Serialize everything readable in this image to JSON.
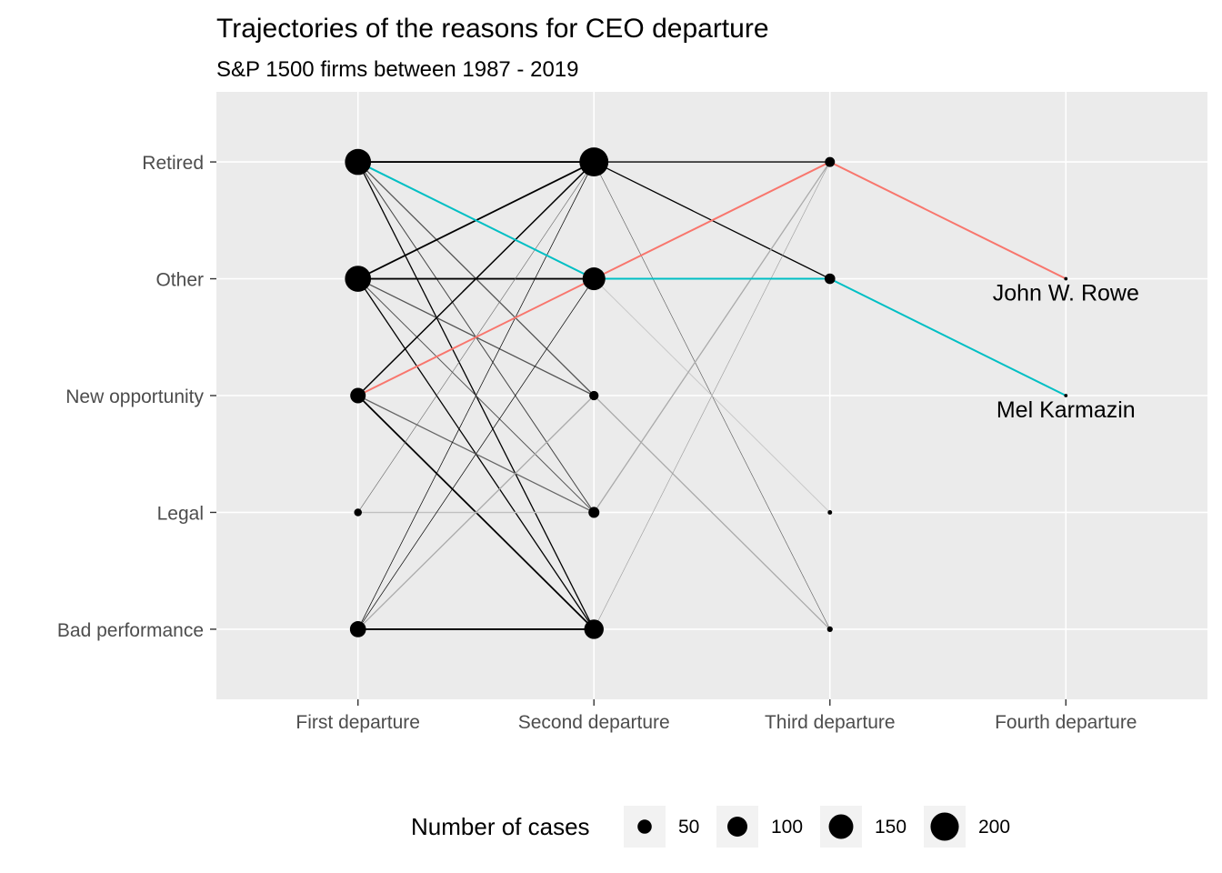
{
  "chart_data": {
    "type": "scatter",
    "title": "Trajectories of the reasons for CEO departure",
    "subtitle": "S&P 1500 firms between 1987 - 2019",
    "x_categories": [
      "First departure",
      "Second departure",
      "Third departure",
      "Fourth departure"
    ],
    "y_categories": [
      "Bad performance",
      "Legal",
      "New opportunity",
      "Other",
      "Retired"
    ],
    "grid": true,
    "legend": {
      "title": "Number of cases",
      "position": "bottom",
      "entries": [
        {
          "label": "50",
          "value": 50
        },
        {
          "label": "100",
          "value": 100
        },
        {
          "label": "150",
          "value": 150
        },
        {
          "label": "200",
          "value": 200
        }
      ]
    },
    "nodes": [
      {
        "x": "First departure",
        "y": "Retired",
        "n": 170
      },
      {
        "x": "First departure",
        "y": "Other",
        "n": 170
      },
      {
        "x": "First departure",
        "y": "New opportunity",
        "n": 60
      },
      {
        "x": "First departure",
        "y": "Legal",
        "n": 15
      },
      {
        "x": "First departure",
        "y": "Bad performance",
        "n": 65
      },
      {
        "x": "Second departure",
        "y": "Retired",
        "n": 210
      },
      {
        "x": "Second departure",
        "y": "Other",
        "n": 130
      },
      {
        "x": "Second departure",
        "y": "New opportunity",
        "n": 22
      },
      {
        "x": "Second departure",
        "y": "Legal",
        "n": 30
      },
      {
        "x": "Second departure",
        "y": "Bad performance",
        "n": 95
      },
      {
        "x": "Third departure",
        "y": "Retired",
        "n": 25
      },
      {
        "x": "Third departure",
        "y": "Other",
        "n": 28
      },
      {
        "x": "Third departure",
        "y": "Legal",
        "n": 5
      },
      {
        "x": "Third departure",
        "y": "Bad performance",
        "n": 8
      },
      {
        "x": "Fourth departure",
        "y": "Other",
        "n": 3
      },
      {
        "x": "Fourth departure",
        "y": "New opportunity",
        "n": 3
      }
    ],
    "links": [
      {
        "from": [
          "First departure",
          "Retired"
        ],
        "to": [
          "Second departure",
          "Retired"
        ],
        "tone": "#000000",
        "w": 1.8
      },
      {
        "from": [
          "First departure",
          "Retired"
        ],
        "to": [
          "Second departure",
          "New opportunity"
        ],
        "tone": "#555555",
        "w": 1.3
      },
      {
        "from": [
          "First departure",
          "Retired"
        ],
        "to": [
          "Second departure",
          "Legal"
        ],
        "tone": "#444444",
        "w": 1.0
      },
      {
        "from": [
          "First departure",
          "Retired"
        ],
        "to": [
          "Second departure",
          "Bad performance"
        ],
        "tone": "#000000",
        "w": 1.3
      },
      {
        "from": [
          "First departure",
          "Other"
        ],
        "to": [
          "Second departure",
          "Retired"
        ],
        "tone": "#000000",
        "w": 1.8
      },
      {
        "from": [
          "First departure",
          "Other"
        ],
        "to": [
          "Second departure",
          "Other"
        ],
        "tone": "#000000",
        "w": 1.8
      },
      {
        "from": [
          "First departure",
          "Other"
        ],
        "to": [
          "Second departure",
          "New opportunity"
        ],
        "tone": "#555555",
        "w": 1.3
      },
      {
        "from": [
          "First departure",
          "Other"
        ],
        "to": [
          "Second departure",
          "Legal"
        ],
        "tone": "#555555",
        "w": 1.0
      },
      {
        "from": [
          "First departure",
          "Other"
        ],
        "to": [
          "Second departure",
          "Bad performance"
        ],
        "tone": "#000000",
        "w": 1.3
      },
      {
        "from": [
          "First departure",
          "New opportunity"
        ],
        "to": [
          "Second departure",
          "Retired"
        ],
        "tone": "#000000",
        "w": 1.5
      },
      {
        "from": [
          "First departure",
          "New opportunity"
        ],
        "to": [
          "Second departure",
          "Legal"
        ],
        "tone": "#666666",
        "w": 1.3
      },
      {
        "from": [
          "First departure",
          "New opportunity"
        ],
        "to": [
          "Second departure",
          "Bad performance"
        ],
        "tone": "#000000",
        "w": 1.8
      },
      {
        "from": [
          "First departure",
          "Legal"
        ],
        "to": [
          "Second departure",
          "Retired"
        ],
        "tone": "#666666",
        "w": 0.6
      },
      {
        "from": [
          "First departure",
          "Legal"
        ],
        "to": [
          "Second departure",
          "Legal"
        ],
        "tone": "#c0c0c0",
        "w": 1.5
      },
      {
        "from": [
          "First departure",
          "Bad performance"
        ],
        "to": [
          "Second departure",
          "Retired"
        ],
        "tone": "#000000",
        "w": 0.7
      },
      {
        "from": [
          "First departure",
          "Bad performance"
        ],
        "to": [
          "Second departure",
          "Other"
        ],
        "tone": "#000000",
        "w": 0.7
      },
      {
        "from": [
          "First departure",
          "Bad performance"
        ],
        "to": [
          "Second departure",
          "New opportunity"
        ],
        "tone": "#aaaaaa",
        "w": 1.3
      },
      {
        "from": [
          "First departure",
          "Bad performance"
        ],
        "to": [
          "Second departure",
          "Bad performance"
        ],
        "tone": "#000000",
        "w": 1.8
      },
      {
        "from": [
          "Second departure",
          "Retired"
        ],
        "to": [
          "Third departure",
          "Retired"
        ],
        "tone": "#000000",
        "w": 1.3
      },
      {
        "from": [
          "Second departure",
          "Retired"
        ],
        "to": [
          "Third departure",
          "Other"
        ],
        "tone": "#000000",
        "w": 1.3
      },
      {
        "from": [
          "Second departure",
          "Retired"
        ],
        "to": [
          "Third departure",
          "Bad performance"
        ],
        "tone": "#555555",
        "w": 0.6
      },
      {
        "from": [
          "Second departure",
          "Other"
        ],
        "to": [
          "Third departure",
          "Legal"
        ],
        "tone": "#c8c8c8",
        "w": 1.0
      },
      {
        "from": [
          "Second departure",
          "New opportunity"
        ],
        "to": [
          "Third departure",
          "Bad performance"
        ],
        "tone": "#aaaaaa",
        "w": 1.3
      },
      {
        "from": [
          "Second departure",
          "Bad performance"
        ],
        "to": [
          "Third departure",
          "Retired"
        ],
        "tone": "#999999",
        "w": 0.6
      },
      {
        "from": [
          "Second departure",
          "Legal"
        ],
        "to": [
          "Third departure",
          "Retired"
        ],
        "tone": "#aaaaaa",
        "w": 1.3
      }
    ],
    "highlights": [
      {
        "label": "John W. Rowe",
        "color": "#f8766d",
        "path": [
          "New opportunity",
          "Other",
          "Retired",
          "Other"
        ]
      },
      {
        "label": "Mel Karmazin",
        "color": "#00bfc4",
        "path": [
          "Retired",
          "Other",
          "Other",
          "New opportunity"
        ]
      }
    ]
  }
}
